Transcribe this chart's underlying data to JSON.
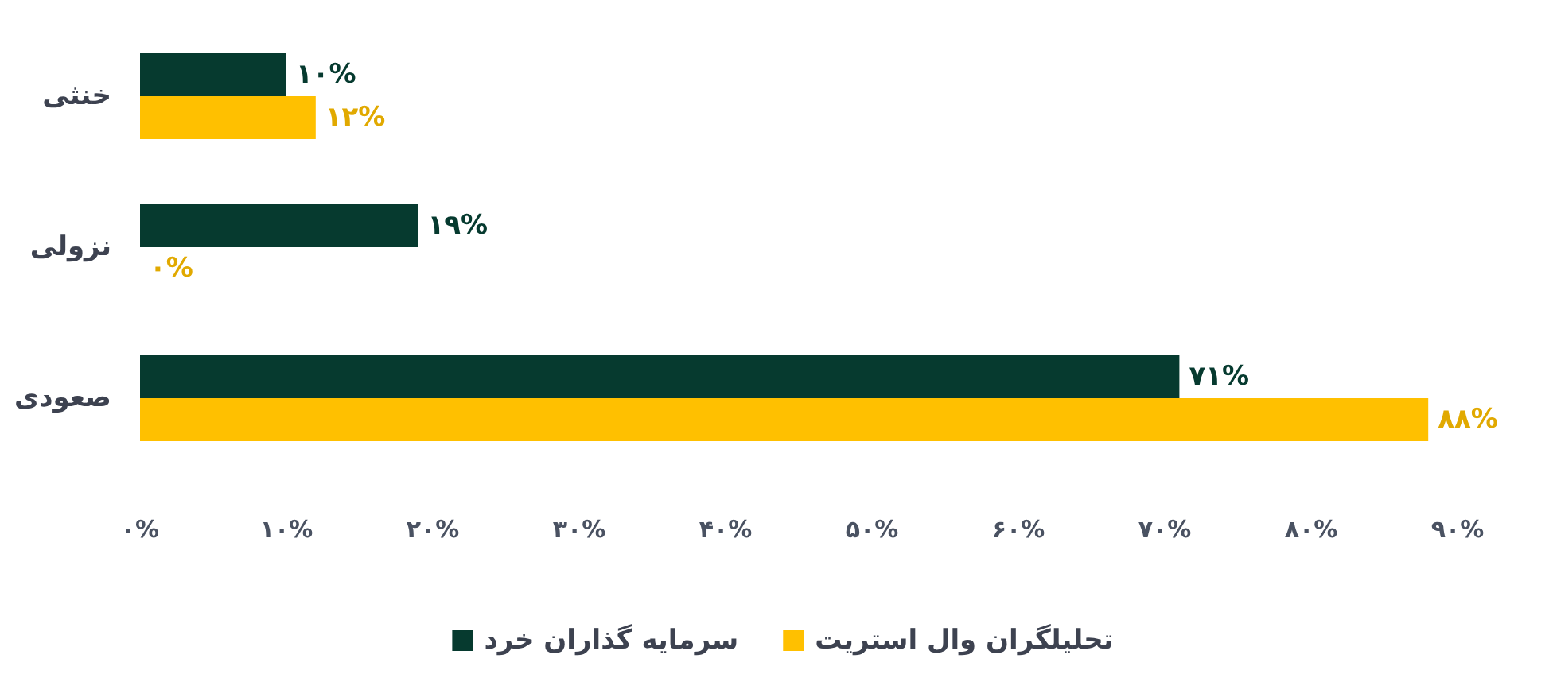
{
  "chart_data": {
    "type": "bar",
    "orientation": "horizontal",
    "categories": [
      "خنثی",
      "نزولی",
      "صعودی"
    ],
    "series": [
      {
        "name": "سرمایه گذاران خرد",
        "color": "#063a2f",
        "values": [
          10,
          19,
          71
        ],
        "value_labels": [
          "۱۰%",
          "۱۹%",
          "۷۱%"
        ]
      },
      {
        "name": "تحلیلگران وال استریت",
        "color": "#ffc000",
        "values": [
          12,
          0,
          88
        ],
        "value_labels": [
          "۱۲%",
          "۰%",
          "۸۸%"
        ]
      }
    ],
    "xlim": [
      0,
      90
    ],
    "xticks": [
      {
        "value": 0,
        "label": "۰%"
      },
      {
        "value": 10,
        "label": "۱۰%"
      },
      {
        "value": 20,
        "label": "۲۰%"
      },
      {
        "value": 30,
        "label": "۳۰%"
      },
      {
        "value": 40,
        "label": "۴۰%"
      },
      {
        "value": 50,
        "label": "۵۰%"
      },
      {
        "value": 60,
        "label": "۶۰%"
      },
      {
        "value": 70,
        "label": "۷۰%"
      },
      {
        "value": 80,
        "label": "۸۰%"
      },
      {
        "value": 90,
        "label": "۹۰%"
      }
    ],
    "legend": "bottom"
  }
}
